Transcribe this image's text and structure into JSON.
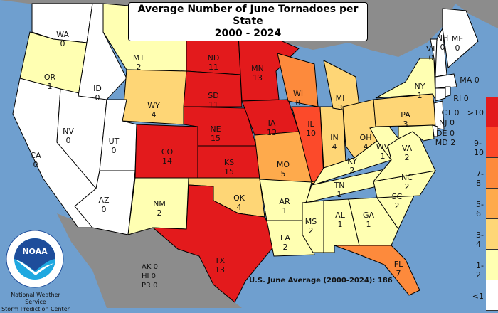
{
  "title": {
    "line1": "Average Number of June Tornadoes per State",
    "line2": "2000 - 2024"
  },
  "colors": {
    "ocean": "#6f9fcf",
    "foreign_land": "#8c8c8c",
    "lt1": "#ffffff",
    "1-2": "#ffffb2",
    "3-4": "#fed676",
    "5-6": "#feaa4c",
    "7-8": "#fd8a3c",
    "9-10": "#fc4a2a",
    "gt10": "#e31a1c"
  },
  "legend": [
    ">10",
    "9-10",
    "7-8",
    "5-6",
    "3-4",
    "1-2",
    "<1"
  ],
  "states": {
    "WA": 0,
    "OR": 1,
    "CA": 0,
    "NV": 0,
    "ID": 0,
    "MT": 2,
    "WY": 4,
    "UT": 0,
    "AZ": 0,
    "CO": 14,
    "NM": 2,
    "ND": 11,
    "SD": 11,
    "NE": 15,
    "KS": 15,
    "OK": 4,
    "TX": 13,
    "MN": 13,
    "IA": 13,
    "MO": 5,
    "AR": 1,
    "LA": 2,
    "WI": 8,
    "IL": 10,
    "IN": 4,
    "MI": 3,
    "OH": 4,
    "KY": 2,
    "TN": 1,
    "MS": 2,
    "AL": 1,
    "GA": 1,
    "FL": 7,
    "SC": 2,
    "NC": 2,
    "VA": 2,
    "WV": 1,
    "PA": 3,
    "NY": 1,
    "VT": 0,
    "NH": 0,
    "ME": 0,
    "MA": 0,
    "RI": 0,
    "CT": 0,
    "NJ": 0,
    "DE": 0,
    "MD": 2
  },
  "territories": [
    {
      "abbr": "AK",
      "value": 0
    },
    {
      "abbr": "HI",
      "value": 0
    },
    {
      "abbr": "PR",
      "value": 0
    }
  ],
  "average": {
    "label": "U.S. June Average (2000-2024):",
    "value": 186
  },
  "logo": {
    "text": "NOAA",
    "ring": "NATIONAL OCEANIC AND ATMOSPHERIC ADMINISTRATION · U.S. DEPARTMENT OF COMMERCE"
  },
  "credit": {
    "line1": "National Weather Service",
    "line2": "Storm Prediction Center"
  }
}
